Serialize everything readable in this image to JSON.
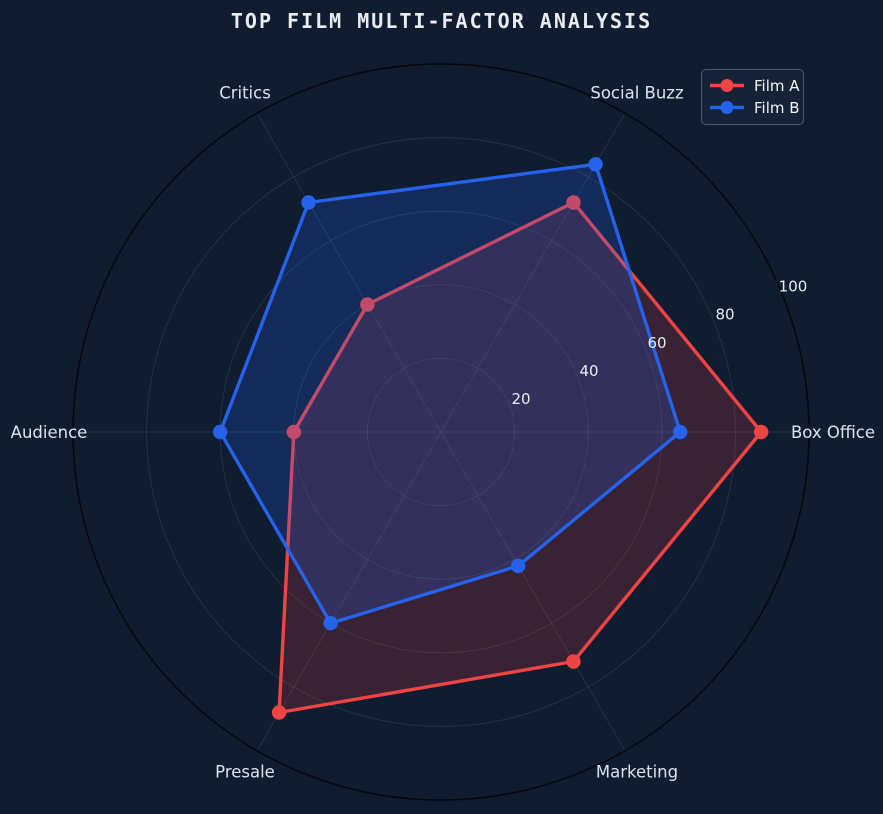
{
  "title": "TOP FILM MULTI-FACTOR ANALYSIS",
  "legend": {
    "position": "top-right",
    "items": [
      {
        "label": "Film A",
        "color": "#ef4444",
        "marker": "circle-on-line"
      },
      {
        "label": "Film B",
        "color": "#2563eb",
        "marker": "circle-on-line"
      }
    ]
  },
  "chart_data": {
    "type": "radar",
    "title": "TOP FILM MULTI-FACTOR ANALYSIS",
    "categories": [
      "Box Office",
      "Social Buzz",
      "Critics",
      "Audience",
      "Presale",
      "Marketing"
    ],
    "series": [
      {
        "name": "Film A",
        "color": "#ef4444",
        "fill_opacity": 0.18,
        "values": [
          87,
          72,
          40,
          40,
          88,
          72
        ]
      },
      {
        "name": "Film B",
        "color": "#2563eb",
        "fill_opacity": 0.22,
        "values": [
          65,
          84,
          72,
          60,
          60,
          42
        ]
      }
    ],
    "rmin": 0,
    "rmax": 100,
    "rticks": [
      20,
      40,
      60,
      80,
      100
    ],
    "tick_label_angle_deg": 22.5,
    "axis_angles_deg": [
      0,
      60,
      120,
      180,
      240,
      300
    ],
    "angular_direction": "counterclockwise",
    "grid": "circular",
    "legend_position": "top-right"
  },
  "colors": {
    "background": "#101c30",
    "title_text": "#e9ecef",
    "axis_label": "#dce3ec",
    "tick_label": "#e8edf2",
    "gridline": "rgba(163,181,209,0.14)",
    "spine": "#05080f",
    "legend_background": "rgba(22,35,57,0.85)",
    "legend_border": "rgba(173,191,219,0.35)",
    "legend_text": "#f2f5f8",
    "film_a": "#ef4444",
    "film_b": "#2563eb"
  }
}
